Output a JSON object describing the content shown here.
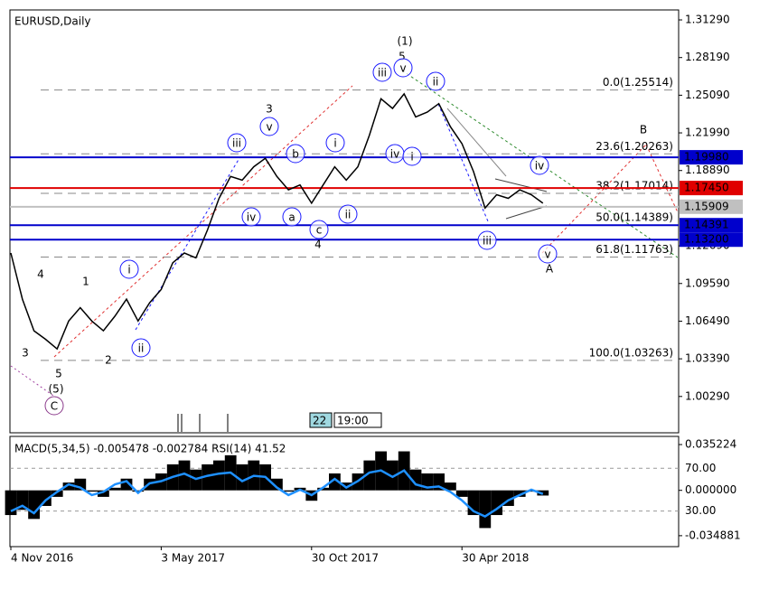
{
  "chart_data": [
    {
      "type": "line",
      "title": "EURUSD,Daily",
      "color": "#000000",
      "categories": [
        "4 Nov 2016",
        null,
        null,
        null,
        null,
        null,
        null,
        null,
        null,
        null,
        null,
        null,
        null,
        "3 May 2017",
        null,
        null,
        null,
        null,
        null,
        null,
        null,
        null,
        null,
        null,
        null,
        null,
        "30 Oct 2017",
        null,
        null,
        null,
        null,
        null,
        null,
        null,
        null,
        null,
        null,
        null,
        null,
        "30 Apr 2018",
        null,
        null,
        null,
        null,
        null,
        null,
        null
      ],
      "values": [
        1.121,
        1.083,
        1.057,
        1.05,
        1.042,
        1.065,
        1.076,
        1.065,
        1.057,
        1.069,
        1.083,
        1.065,
        1.08,
        1.091,
        1.113,
        1.121,
        1.117,
        1.14,
        1.166,
        1.184,
        1.181,
        1.192,
        1.199,
        1.184,
        1.173,
        1.177,
        1.162,
        1.177,
        1.192,
        1.181,
        1.192,
        1.218,
        1.248,
        1.24,
        1.252,
        1.233,
        1.237,
        1.244,
        1.225,
        1.211,
        1.188,
        1.158,
        1.169,
        1.166,
        1.173,
        1.169,
        1.162
      ],
      "ylim": [
        0.973,
        1.3211
      ],
      "yticks": [
        {
          "value": 1.3129,
          "label": "1.31290"
        },
        {
          "value": 1.2819,
          "label": "1.28190"
        },
        {
          "value": 1.2509,
          "label": "1.25090"
        },
        {
          "value": 1.2199,
          "label": "1.21990"
        },
        {
          "value": 1.1889,
          "label": "1.18890"
        },
        {
          "value": 1.1269,
          "label": "1.12690"
        },
        {
          "value": 1.0959,
          "label": "1.09590"
        },
        {
          "value": 1.0649,
          "label": "1.06490"
        },
        {
          "value": 1.0339,
          "label": "1.03390"
        },
        {
          "value": 1.0029,
          "label": "1.00290"
        }
      ],
      "levels": [
        {
          "value": 1.1998,
          "label": "1.19980",
          "color": "#0000cc"
        },
        {
          "value": 1.1745,
          "label": "1.17450",
          "color": "#e00000"
        },
        {
          "value": 1.15909,
          "label": "1.15909",
          "color": "#c0c0c0"
        },
        {
          "value": 1.14391,
          "label": "1.14391",
          "color": "#0000cc"
        },
        {
          "value": 1.132,
          "label": "1.13200",
          "color": "#0000cc"
        }
      ],
      "fib_levels": [
        {
          "value": 1.25514,
          "label": "0.0(1.25514)"
        },
        {
          "value": 1.20263,
          "label": "23.6(1.20263)"
        },
        {
          "value": 1.17014,
          "label": "38.2(1.17014)"
        },
        {
          "value": 1.14389,
          "label": "50.0(1.14389)"
        },
        {
          "value": 1.11763,
          "label": "61.8(1.11763)"
        },
        {
          "value": 1.03263,
          "label": "100.0(1.03263)"
        }
      ],
      "wave_labels": [
        {
          "text": "(1)",
          "color": "#2e8b2e",
          "circled": false
        },
        {
          "text": "5",
          "color": "#a0302a",
          "circled": false
        },
        {
          "text": "iii",
          "color": "#1a1aff",
          "circled": true
        },
        {
          "text": "v",
          "color": "#1a1aff",
          "circled": true
        },
        {
          "text": "ii",
          "color": "#1a1aff",
          "circled": true
        },
        {
          "text": "3",
          "color": "#a0302a",
          "circled": false
        },
        {
          "text": "v",
          "color": "#1a1aff",
          "circled": true
        },
        {
          "text": "iii",
          "color": "#1a1aff",
          "circled": true
        },
        {
          "text": "b",
          "color": "#1a1aff",
          "circled": true
        },
        {
          "text": "i",
          "color": "#1a1aff",
          "circled": true
        },
        {
          "text": "iv",
          "color": "#1a1aff",
          "circled": true
        },
        {
          "text": "i",
          "color": "#1a1aff",
          "circled": true
        },
        {
          "text": "iv",
          "color": "#1a1aff",
          "circled": true
        },
        {
          "text": "B",
          "color": "#a0302a",
          "circled": false
        },
        {
          "text": "iv",
          "color": "#1a1aff",
          "circled": true
        },
        {
          "text": "a",
          "color": "#1a1aff",
          "circled": true
        },
        {
          "text": "c",
          "color": "#1a1aff",
          "circled": true
        },
        {
          "text": "ii",
          "color": "#1a1aff",
          "circled": true
        },
        {
          "text": "4",
          "color": "#a0302a",
          "circled": false
        },
        {
          "text": "iii",
          "color": "#1a1aff",
          "circled": true
        },
        {
          "text": "v",
          "color": "#1a1aff",
          "circled": true
        },
        {
          "text": "A",
          "color": "#d02020",
          "circled": false
        },
        {
          "text": "i",
          "color": "#1a1aff",
          "circled": true
        },
        {
          "text": "ii",
          "color": "#1a1aff",
          "circled": true
        },
        {
          "text": "4",
          "color": "#a0302a",
          "circled": false
        },
        {
          "text": "1",
          "color": "#a0302a",
          "circled": false
        },
        {
          "text": "2",
          "color": "#a0302a",
          "circled": false
        },
        {
          "text": "3",
          "color": "#a0302a",
          "circled": false
        },
        {
          "text": "5",
          "color": "#a0302a",
          "circled": false
        },
        {
          "text": "(5)",
          "color": "#2e8b2e",
          "circled": false
        },
        {
          "text": "C",
          "color": "#8b3a8b",
          "circled": true
        }
      ],
      "time_markers": [
        "22",
        "19:00"
      ]
    },
    {
      "type": "bar",
      "title": "MACD(5,34,5) -0.005478 -0.002784 RSI(14) 41.52",
      "color": "#000000",
      "values": [
        -0.019,
        -0.015,
        -0.022,
        -0.012,
        -0.005,
        0.006,
        0.009,
        -0.001,
        -0.005,
        0.002,
        0.009,
        -0.001,
        0.009,
        0.013,
        0.02,
        0.023,
        0.016,
        0.02,
        0.023,
        0.027,
        0.02,
        0.023,
        0.02,
        0.009,
        -0.001,
        0.002,
        -0.008,
        0.002,
        0.013,
        0.006,
        0.013,
        0.023,
        0.03,
        0.023,
        0.03,
        0.016,
        0.013,
        0.013,
        0.006,
        -0.005,
        -0.019,
        -0.029,
        -0.019,
        -0.012,
        -0.005,
        -0.001,
        -0.004
      ],
      "ylim": [
        -0.0433,
        0.0415
      ],
      "yticks": [
        0.035224,
        {
          "value": 0,
          "label": "0.000000"
        },
        -0.034881
      ],
      "rsi": {
        "color": "#1e90ff",
        "axis": "y2",
        "values": [
          30,
          35,
          28,
          40,
          48,
          55,
          52,
          45,
          48,
          55,
          58,
          47,
          56,
          58,
          62,
          65,
          60,
          63,
          65,
          66,
          58,
          63,
          62,
          52,
          45,
          50,
          45,
          52,
          60,
          52,
          58,
          66,
          68,
          62,
          68,
          55,
          52,
          53,
          48,
          40,
          30,
          25,
          32,
          40,
          45,
          50,
          46
        ]
      },
      "y2lim": [
        -3.2,
        99.8
      ],
      "y2ticks": [
        {
          "value": 70,
          "label": "70.00"
        },
        {
          "value": 30,
          "label": "30.00"
        }
      ]
    }
  ]
}
